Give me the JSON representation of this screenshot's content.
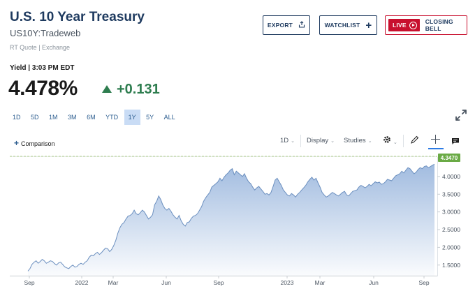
{
  "header": {
    "title": "U.S. 10 Year Treasury",
    "symbol": "US10Y:Tradeweb",
    "quote_source": "RT Quote | Exchange"
  },
  "buttons": {
    "export": "EXPORT",
    "watchlist": "WATCHLIST",
    "live": "LIVE",
    "closing_bell": "CLOSING BELL"
  },
  "quote": {
    "yield_label": "Yield | 3:03 PM EDT",
    "price": "4.478%",
    "change": "+0.131",
    "direction": "up",
    "up_color": "#2e7d4f"
  },
  "ranges": [
    "1D",
    "5D",
    "1M",
    "3M",
    "6M",
    "YTD",
    "1Y",
    "5Y",
    "ALL"
  ],
  "active_range": "1Y",
  "toolbar": {
    "comparison": "Comparison",
    "interval": "1D",
    "display": "Display",
    "studies": "Studies",
    "settings_icon": "gear-icon",
    "draw_icon": "pencil-icon",
    "crosshair_icon": "crosshair-icon",
    "comment_icon": "comment-icon"
  },
  "chart_data": {
    "type": "area",
    "x_ticks": [
      "Sep",
      "2022",
      "Mar",
      "Jun",
      "Sep",
      "2023",
      "Mar",
      "Jun",
      "Sep"
    ],
    "y_ticks": [
      "4.0000",
      "3.5000",
      "3.0000",
      "2.5000",
      "2.0000",
      "1.5000"
    ],
    "ylim": [
      1.2,
      4.55
    ],
    "current_value_label": "4.3470",
    "current_value": 4.347,
    "line_color": "#6b8fbf",
    "fill_color": "#9cb8de",
    "tag_color": "#6aaa45",
    "grid": false,
    "y": [
      1.33,
      1.4,
      1.52,
      1.58,
      1.62,
      1.55,
      1.6,
      1.66,
      1.62,
      1.55,
      1.58,
      1.62,
      1.6,
      1.54,
      1.5,
      1.56,
      1.58,
      1.52,
      1.45,
      1.42,
      1.4,
      1.46,
      1.5,
      1.44,
      1.46,
      1.52,
      1.55,
      1.52,
      1.58,
      1.62,
      1.72,
      1.78,
      1.76,
      1.82,
      1.86,
      1.8,
      1.85,
      1.92,
      1.98,
      1.96,
      1.88,
      1.94,
      2.05,
      2.2,
      2.4,
      2.55,
      2.65,
      2.7,
      2.8,
      2.88,
      2.9,
      2.95,
      3.05,
      2.95,
      2.92,
      2.98,
      3.05,
      3.0,
      2.9,
      2.8,
      2.85,
      2.92,
      3.2,
      3.3,
      3.45,
      3.35,
      3.2,
      3.1,
      3.05,
      3.1,
      3.02,
      2.92,
      2.85,
      2.8,
      2.9,
      2.75,
      2.65,
      2.6,
      2.7,
      2.72,
      2.82,
      2.88,
      2.9,
      2.95,
      3.05,
      3.15,
      3.3,
      3.4,
      3.48,
      3.55,
      3.7,
      3.75,
      3.8,
      3.85,
      3.95,
      3.88,
      3.98,
      4.05,
      4.1,
      4.18,
      4.22,
      4.05,
      4.15,
      4.1,
      4.05,
      4.0,
      4.08,
      3.95,
      3.85,
      3.8,
      3.7,
      3.62,
      3.68,
      3.72,
      3.65,
      3.58,
      3.5,
      3.52,
      3.48,
      3.55,
      3.72,
      3.9,
      3.95,
      3.85,
      3.75,
      3.62,
      3.55,
      3.48,
      3.45,
      3.52,
      3.48,
      3.42,
      3.5,
      3.55,
      3.62,
      3.68,
      3.75,
      3.85,
      3.92,
      3.98,
      3.9,
      3.95,
      3.82,
      3.7,
      3.55,
      3.48,
      3.42,
      3.45,
      3.5,
      3.55,
      3.52,
      3.48,
      3.45,
      3.5,
      3.55,
      3.58,
      3.48,
      3.45,
      3.52,
      3.58,
      3.6,
      3.62,
      3.7,
      3.75,
      3.72,
      3.68,
      3.72,
      3.78,
      3.74,
      3.8,
      3.85,
      3.82,
      3.84,
      3.78,
      3.8,
      3.85,
      3.92,
      3.9,
      3.88,
      3.95,
      4.02,
      4.05,
      4.08,
      4.15,
      4.1,
      4.18,
      4.25,
      4.22,
      4.15,
      4.08,
      4.12,
      4.2,
      4.25,
      4.22,
      4.28,
      4.3,
      4.25,
      4.28,
      4.32,
      4.347
    ]
  }
}
